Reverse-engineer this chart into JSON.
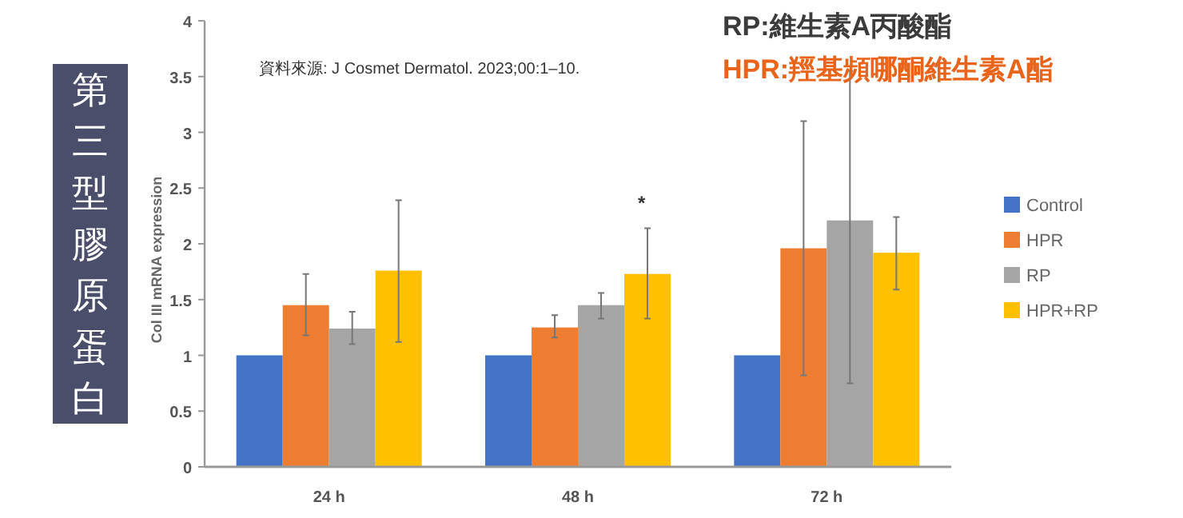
{
  "chart_data": {
    "type": "bar",
    "title": "第三型膠原蛋白",
    "ylabel": "Col III mRNA expression",
    "categories": [
      "24 h",
      "48 h",
      "72 h"
    ],
    "series": [
      {
        "name": "Control",
        "color": "#4472c4",
        "values": [
          1,
          1,
          1
        ]
      },
      {
        "name": "HPR",
        "color": "#ed7d31",
        "values": [
          1.45,
          1.25,
          1.96
        ],
        "errors": [
          [
            1.18,
            1.73
          ],
          [
            1.16,
            1.36
          ],
          [
            0.82,
            3.1
          ]
        ]
      },
      {
        "name": "RP",
        "color": "#a5a5a5",
        "values": [
          1.24,
          1.45,
          2.21
        ],
        "errors": [
          [
            1.1,
            1.39
          ],
          [
            1.33,
            1.56
          ],
          [
            0.75,
            3.55
          ]
        ]
      },
      {
        "name": "HPR+RP",
        "color": "#ffc000",
        "values": [
          1.76,
          1.73,
          1.92
        ],
        "errors": [
          [
            1.12,
            2.39
          ],
          [
            1.33,
            2.14
          ],
          [
            1.59,
            2.24
          ]
        ]
      }
    ],
    "ylim": [
      0,
      4
    ],
    "yticks": [
      0,
      0.5,
      1,
      1.5,
      2,
      2.5,
      3,
      3.5,
      4
    ],
    "grid": false,
    "legend": "right",
    "annotations": [
      "資料來源: J Cosmet Dermatol. 2023;00:1–10.",
      "RP:維生素A丙酸酯",
      "HPR:羥基頻哪酮維生素A酯",
      "*"
    ]
  }
}
